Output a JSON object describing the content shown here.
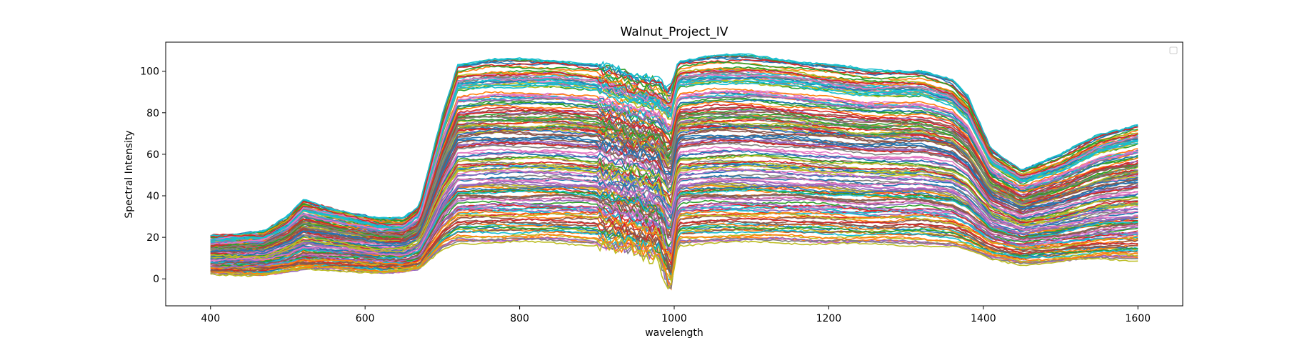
{
  "chart_data": {
    "type": "line",
    "title": "Walnut_Project_IV",
    "xlabel": "wavelength",
    "ylabel": "Spectral Intensity",
    "xlim": [
      342,
      1658
    ],
    "ylim": [
      -13,
      114
    ],
    "x_ticks": [
      400,
      600,
      800,
      1000,
      1200,
      1400,
      1600
    ],
    "y_ticks": [
      0,
      20,
      40,
      60,
      80,
      100
    ],
    "grid": false,
    "legend": "top-right, empty",
    "series_count": 160,
    "series_wavelength_range": [
      400,
      1600
    ],
    "colors": [
      "#1f77b4",
      "#ff7f0e",
      "#2ca02c",
      "#d62728",
      "#9467bd",
      "#8c564b",
      "#e377c2",
      "#7f7f7f",
      "#bcbd22",
      "#17becf"
    ],
    "representative_profile": {
      "x": [
        400,
        470,
        500,
        520,
        560,
        620,
        650,
        670,
        700,
        720,
        760,
        850,
        900,
        950,
        980,
        995,
        1005,
        1050,
        1100,
        1150,
        1250,
        1320,
        1360,
        1380,
        1410,
        1450,
        1500,
        1550,
        1600
      ],
      "top": [
        21,
        23,
        30,
        38,
        34,
        29,
        29,
        35,
        80,
        104,
        106,
        106,
        104,
        98,
        96,
        92,
        106,
        108,
        108,
        106,
        101,
        101,
        96,
        88,
        63,
        53,
        60,
        70,
        75
      ],
      "bottom": [
        2,
        2,
        3,
        4,
        4,
        3,
        3,
        4,
        14,
        17,
        17,
        17,
        16,
        12,
        8,
        -7,
        16,
        17,
        17,
        17,
        16,
        16,
        15,
        13,
        9,
        7,
        8,
        9,
        9
      ]
    }
  }
}
